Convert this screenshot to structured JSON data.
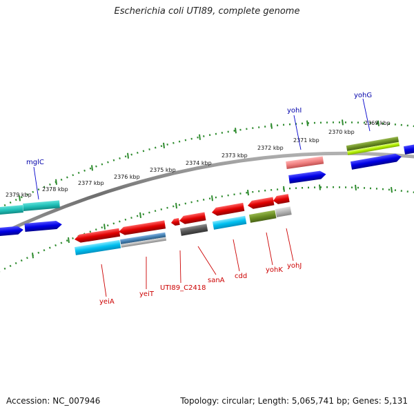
{
  "title": "Escherichia coli UTI89, complete genome",
  "footer": {
    "accession": "Accession: NC_007946",
    "summary": "Topology: circular; Length: 5,065,741 bp; Genes: 5,131"
  },
  "ticks": [
    "2379 kbp",
    "2378 kbp",
    "2377 kbp",
    "2376 kbp",
    "2375 kbp",
    "2374 kbp",
    "2373 kbp",
    "2372 kbp",
    "2371 kbp",
    "2370 kbp",
    "2369 kbp"
  ],
  "genes_top": [
    "mglC",
    "yohI",
    "yohG"
  ],
  "genes_bottom": [
    "yeiA",
    "yeiT",
    "UTI89_C2418",
    "sanA",
    "cdd",
    "yohK",
    "yohJ"
  ],
  "colors": {
    "backbone": "#8c8c8c",
    "tick_ring": "#2e8b2e",
    "red": "#e00000",
    "blue": "#0000e6",
    "cyan": "#00c8f0",
    "teal": "#20c8c0",
    "salmon": "#f08080",
    "olive": "#6b8e23",
    "lime": "#b4f000",
    "gray": "#555555",
    "steel": "#4682b4",
    "lightgray": "#b4b4b4"
  }
}
